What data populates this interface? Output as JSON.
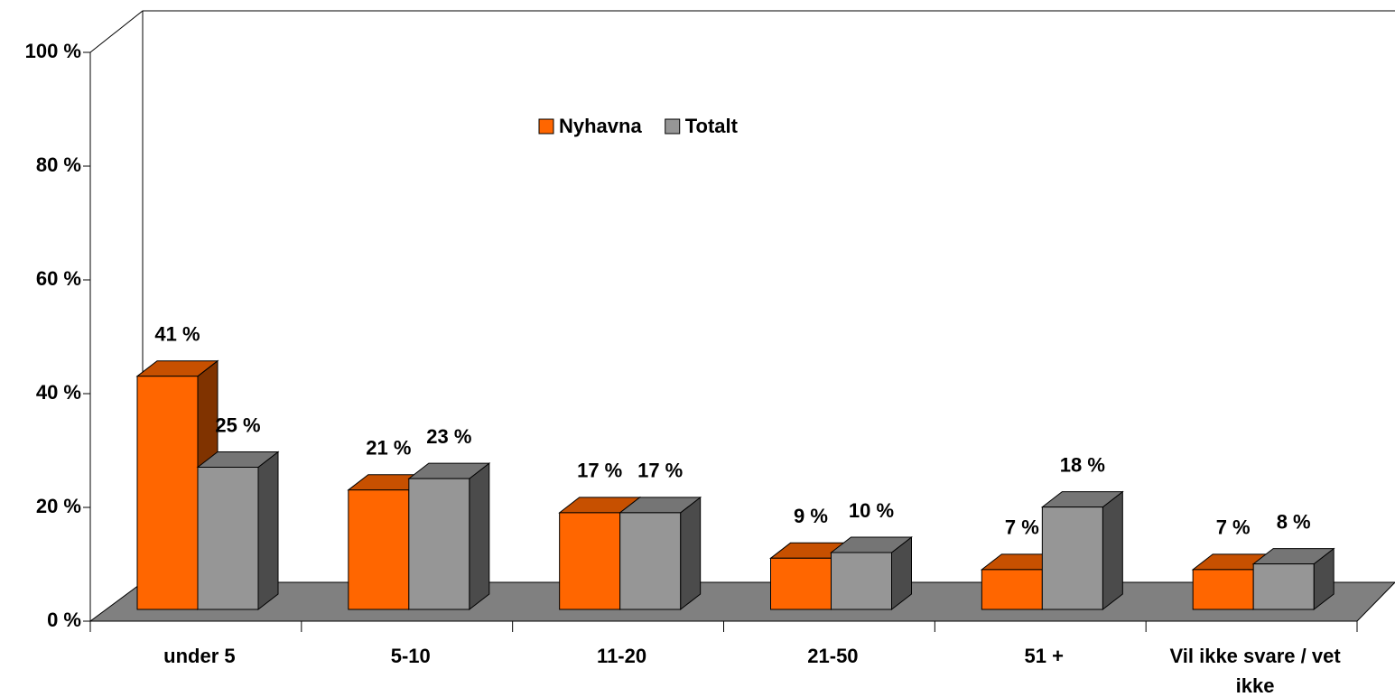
{
  "chart_data": {
    "type": "bar3d",
    "categories": [
      "under 5",
      "5-10",
      "11-20",
      "21-50",
      "51 +",
      "Vil ikke svare / vet ikke"
    ],
    "series": [
      {
        "name": "Nyhavna",
        "color": "#ff6600",
        "values": [
          41,
          21,
          17,
          9,
          7,
          7
        ],
        "value_labels": [
          "41 %",
          "21 %",
          "17 %",
          "9 %",
          "7 %",
          "7 %"
        ]
      },
      {
        "name": "Totalt",
        "color": "#969696",
        "values": [
          25,
          23,
          17,
          10,
          18,
          8
        ],
        "value_labels": [
          "25 %",
          "23 %",
          "17 %",
          "10 %",
          "18 %",
          "8 %"
        ]
      }
    ],
    "ylim": [
      0,
      100
    ],
    "yticks": [
      {
        "value": 0,
        "label": "0 %"
      },
      {
        "value": 20,
        "label": "20 %"
      },
      {
        "value": 40,
        "label": "40 %"
      },
      {
        "value": 60,
        "label": "60 %"
      },
      {
        "value": 80,
        "label": "80 %"
      },
      {
        "value": 100,
        "label": "100 %"
      }
    ]
  }
}
